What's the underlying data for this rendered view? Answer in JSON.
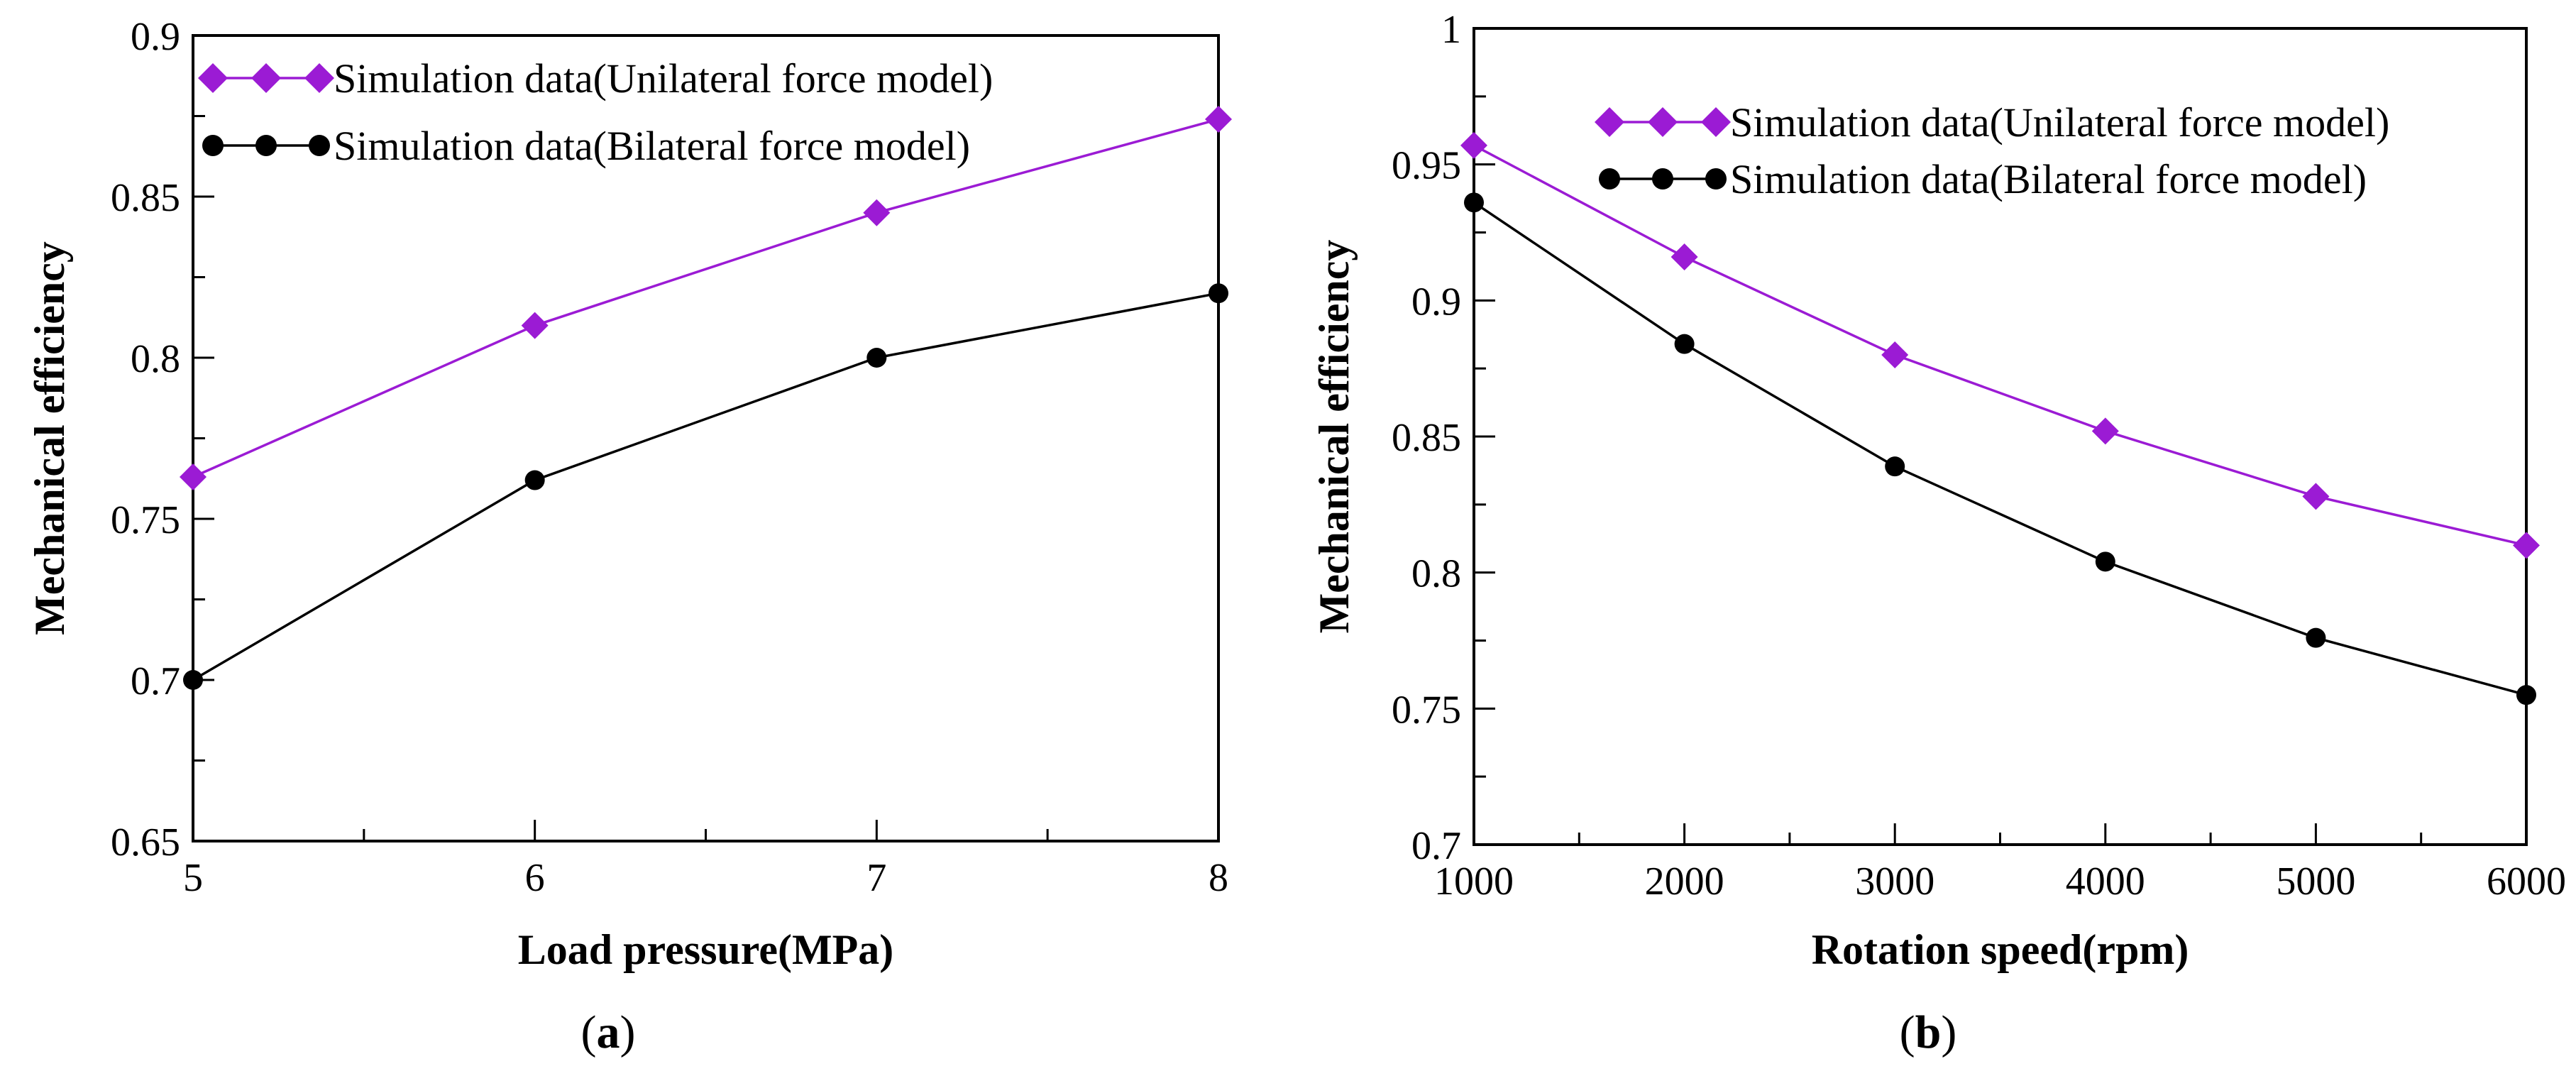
{
  "chart_data": [
    {
      "type": "line",
      "caption": "a",
      "title": "",
      "xlabel": "Load pressure(MPa)",
      "ylabel": "Mechanical efficiency",
      "xlim": [
        5,
        8
      ],
      "ylim": [
        0.65,
        0.9
      ],
      "xticks": [
        5,
        6,
        7,
        8
      ],
      "xtick_labels": [
        "5",
        "6",
        "7",
        "8"
      ],
      "x_minor_step": 0.5,
      "yticks": [
        0.65,
        0.7,
        0.75,
        0.8,
        0.85,
        0.9
      ],
      "ytick_labels": [
        "0.65",
        "0.7",
        "0.75",
        "0.8",
        "0.85",
        "0.9"
      ],
      "y_minor_step": 0.025,
      "legend_position": "top-left",
      "series": [
        {
          "name": "Simulation data(Unilateral force model)",
          "color": "#9B1BD4",
          "marker": "diamond",
          "x": [
            5,
            6,
            7,
            8
          ],
          "values": [
            0.763,
            0.81,
            0.845,
            0.874
          ]
        },
        {
          "name": "Simulation data(Bilateral force model)",
          "color": "#000000",
          "marker": "circle",
          "x": [
            5,
            6,
            7,
            8
          ],
          "values": [
            0.7,
            0.762,
            0.8,
            0.82
          ]
        }
      ]
    },
    {
      "type": "line",
      "caption": "b",
      "title": "",
      "xlabel": "Rotation speed(rpm)",
      "ylabel": "Mechanical efficiency",
      "xlim": [
        1000,
        6000
      ],
      "ylim": [
        0.7,
        1.0
      ],
      "xticks": [
        1000,
        2000,
        3000,
        4000,
        5000,
        6000
      ],
      "xtick_labels": [
        "1000",
        "2000",
        "3000",
        "4000",
        "5000",
        "6000"
      ],
      "x_minor_step": 500,
      "yticks": [
        0.7,
        0.75,
        0.8,
        0.85,
        0.9,
        0.95,
        1.0
      ],
      "ytick_labels": [
        "0.7",
        "0.75",
        "0.8",
        "0.85",
        "0.9",
        "0.95",
        "1"
      ],
      "y_minor_step": 0.025,
      "legend_position": "top-right",
      "series": [
        {
          "name": "Simulation data(Unilateral force model)",
          "color": "#9B1BD4",
          "marker": "diamond",
          "x": [
            1000,
            2000,
            3000,
            4000,
            5000,
            6000
          ],
          "values": [
            0.957,
            0.916,
            0.88,
            0.852,
            0.828,
            0.81
          ]
        },
        {
          "name": "Simulation data(Bilateral force model)",
          "color": "#000000",
          "marker": "circle",
          "x": [
            1000,
            2000,
            3000,
            4000,
            5000,
            6000
          ],
          "values": [
            0.936,
            0.884,
            0.839,
            0.804,
            0.776,
            0.755
          ]
        }
      ]
    }
  ]
}
